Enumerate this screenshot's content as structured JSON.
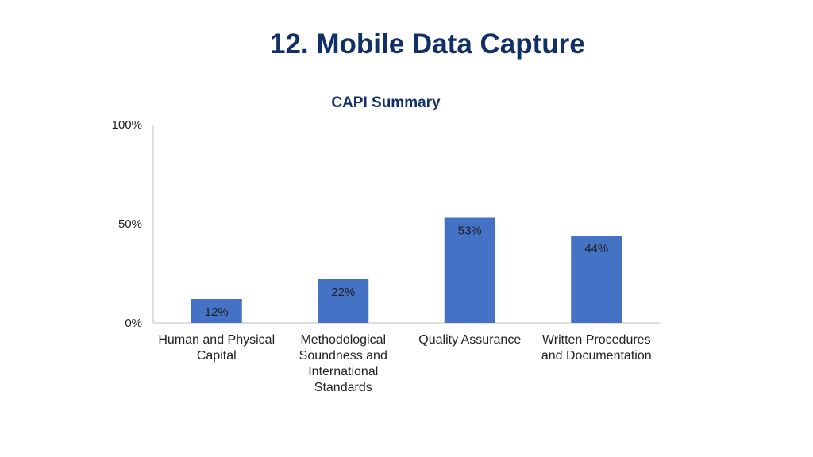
{
  "slide": {
    "title": "12. Mobile Data Capture"
  },
  "colors": {
    "title": "#123068",
    "bar": "#4472C4",
    "axis": "#BFBFBF",
    "text": "#222222"
  },
  "chart_data": {
    "type": "bar",
    "title": "CAPI Summary",
    "xlabel": "",
    "ylabel": "",
    "categories": [
      [
        "Human and Physical",
        "Capital"
      ],
      [
        "Methodological",
        "Soundness and",
        "International",
        "Standards"
      ],
      [
        "Quality Assurance"
      ],
      [
        "Written Procedures",
        "and Documentation"
      ]
    ],
    "values": [
      12,
      22,
      53,
      44
    ],
    "data_labels": [
      "12%",
      "22%",
      "53%",
      "44%"
    ],
    "ylim": [
      0,
      100
    ],
    "yticks": [
      0,
      50,
      100
    ],
    "ytick_labels": [
      "0%",
      "50%",
      "100%"
    ],
    "grid": false,
    "legend": "none"
  }
}
